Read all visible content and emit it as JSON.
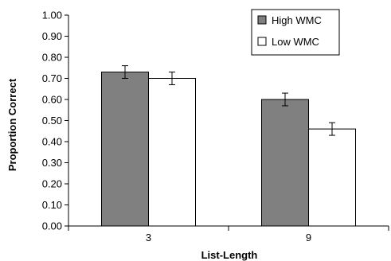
{
  "chart_data": {
    "type": "bar",
    "title": "",
    "xlabel": "List-Length",
    "ylabel": "Proportion Correct",
    "categories": [
      "3",
      "9"
    ],
    "ylim": [
      0,
      1
    ],
    "yticks": [
      "0.00",
      "0.10",
      "0.20",
      "0.30",
      "0.40",
      "0.50",
      "0.60",
      "0.70",
      "0.80",
      "0.90",
      "1.00"
    ],
    "grid": false,
    "legend_position": "top-right",
    "series": [
      {
        "name": "High WMC",
        "values": [
          0.73,
          0.6
        ],
        "errors": [
          0.03,
          0.03
        ],
        "color": "#808080"
      },
      {
        "name": "Low WMC",
        "values": [
          0.7,
          0.46
        ],
        "errors": [
          0.03,
          0.03
        ],
        "color": "#ffffff"
      }
    ]
  }
}
